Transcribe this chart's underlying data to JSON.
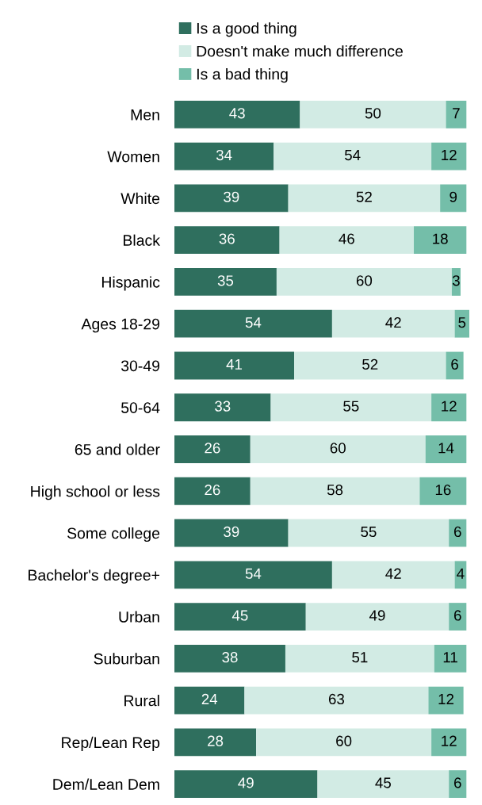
{
  "chart_data": {
    "type": "bar",
    "orientation": "horizontal",
    "stacked": true,
    "data_labels": true,
    "legend": "top",
    "grid": false,
    "categories": [
      "Men",
      "Women",
      "White",
      "Black",
      "Hispanic",
      "Ages 18-29",
      "30-49",
      "50-64",
      "65 and older",
      "High school or less",
      "Some college",
      "Bachelor's degree+",
      "Urban",
      "Suburban",
      "Rural",
      "Rep/Lean Rep",
      "Dem/Lean Dem"
    ],
    "series": [
      {
        "name": "Is a good thing",
        "color": "#2f6f5e",
        "values": [
          43,
          34,
          39,
          36,
          35,
          54,
          41,
          33,
          26,
          26,
          39,
          54,
          45,
          38,
          24,
          28,
          49
        ]
      },
      {
        "name": "Doesn't make much difference",
        "color": "#d2ebe4",
        "values": [
          50,
          54,
          52,
          46,
          60,
          42,
          52,
          55,
          60,
          58,
          55,
          42,
          49,
          51,
          63,
          60,
          45
        ]
      },
      {
        "name": "Is a bad thing",
        "color": "#74bea9",
        "values": [
          7,
          12,
          9,
          18,
          3,
          5,
          6,
          12,
          14,
          16,
          6,
          4,
          6,
          11,
          12,
          12,
          6
        ]
      }
    ]
  }
}
